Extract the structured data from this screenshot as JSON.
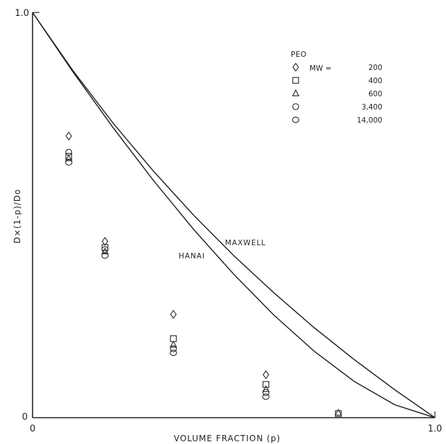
{
  "chart_data": {
    "type": "scatter",
    "title": "",
    "xlabel": "VOLUME FRACTION (p)",
    "ylabel": "D×(1-p)/Do",
    "xlim": [
      0,
      1
    ],
    "ylim": [
      0,
      1
    ],
    "x_tick_labels": [
      "0",
      "1.0"
    ],
    "y_tick_labels": [
      "0",
      "1.0"
    ],
    "grid": false,
    "legend": {
      "placement": "top-right",
      "title": "PEO",
      "prefix": "MW =",
      "entries": [
        {
          "label": "200",
          "marker": "diamond"
        },
        {
          "label": "400",
          "marker": "square"
        },
        {
          "label": "600",
          "marker": "triangle"
        },
        {
          "label": "3,400",
          "marker": "circle"
        },
        {
          "label": "14,000",
          "marker": "hexagon"
        }
      ]
    },
    "series": [
      {
        "name": "200",
        "marker": "diamond",
        "x": [
          0.09,
          0.18,
          0.35,
          0.58
        ],
        "y": [
          0.695,
          0.435,
          0.255,
          0.106
        ]
      },
      {
        "name": "400",
        "marker": "square",
        "x": [
          0.09,
          0.18,
          0.35,
          0.58,
          0.76
        ],
        "y": [
          0.645,
          0.42,
          0.195,
          0.082,
          0.01
        ]
      },
      {
        "name": "600",
        "marker": "triangle",
        "x": [
          0.09,
          0.18,
          0.35,
          0.58,
          0.76
        ],
        "y": [
          0.64,
          0.41,
          0.18,
          0.07,
          0.012
        ]
      },
      {
        "name": "3,400",
        "marker": "circle",
        "x": [
          0.09,
          0.18,
          0.35,
          0.58
        ],
        "y": [
          0.655,
          0.415,
          0.17,
          0.062
        ]
      },
      {
        "name": "14,000",
        "marker": "hexagon",
        "x": [
          0.09,
          0.18,
          0.35,
          0.58
        ],
        "y": [
          0.63,
          0.4,
          0.16,
          0.052
        ]
      }
    ],
    "curves": [
      {
        "name": "MAXWELL",
        "x": [
          0,
          0.1,
          0.2,
          0.3,
          0.4,
          0.5,
          0.6,
          0.7,
          0.8,
          0.9,
          1.0
        ],
        "y": [
          1.0,
          0.857,
          0.727,
          0.609,
          0.5,
          0.4,
          0.308,
          0.222,
          0.143,
          0.069,
          0.0
        ]
      },
      {
        "name": "HANAI",
        "x": [
          0,
          0.1,
          0.2,
          0.3,
          0.4,
          0.5,
          0.6,
          0.7,
          0.8,
          0.9,
          1.0
        ],
        "y": [
          1.0,
          0.854,
          0.716,
          0.586,
          0.465,
          0.354,
          0.253,
          0.164,
          0.089,
          0.032,
          0.0
        ]
      }
    ],
    "annotations": [
      {
        "text": "MAXWELL",
        "x": 0.46,
        "y": 0.425
      },
      {
        "text": "HANAI",
        "x": 0.38,
        "y": 0.385
      }
    ]
  }
}
